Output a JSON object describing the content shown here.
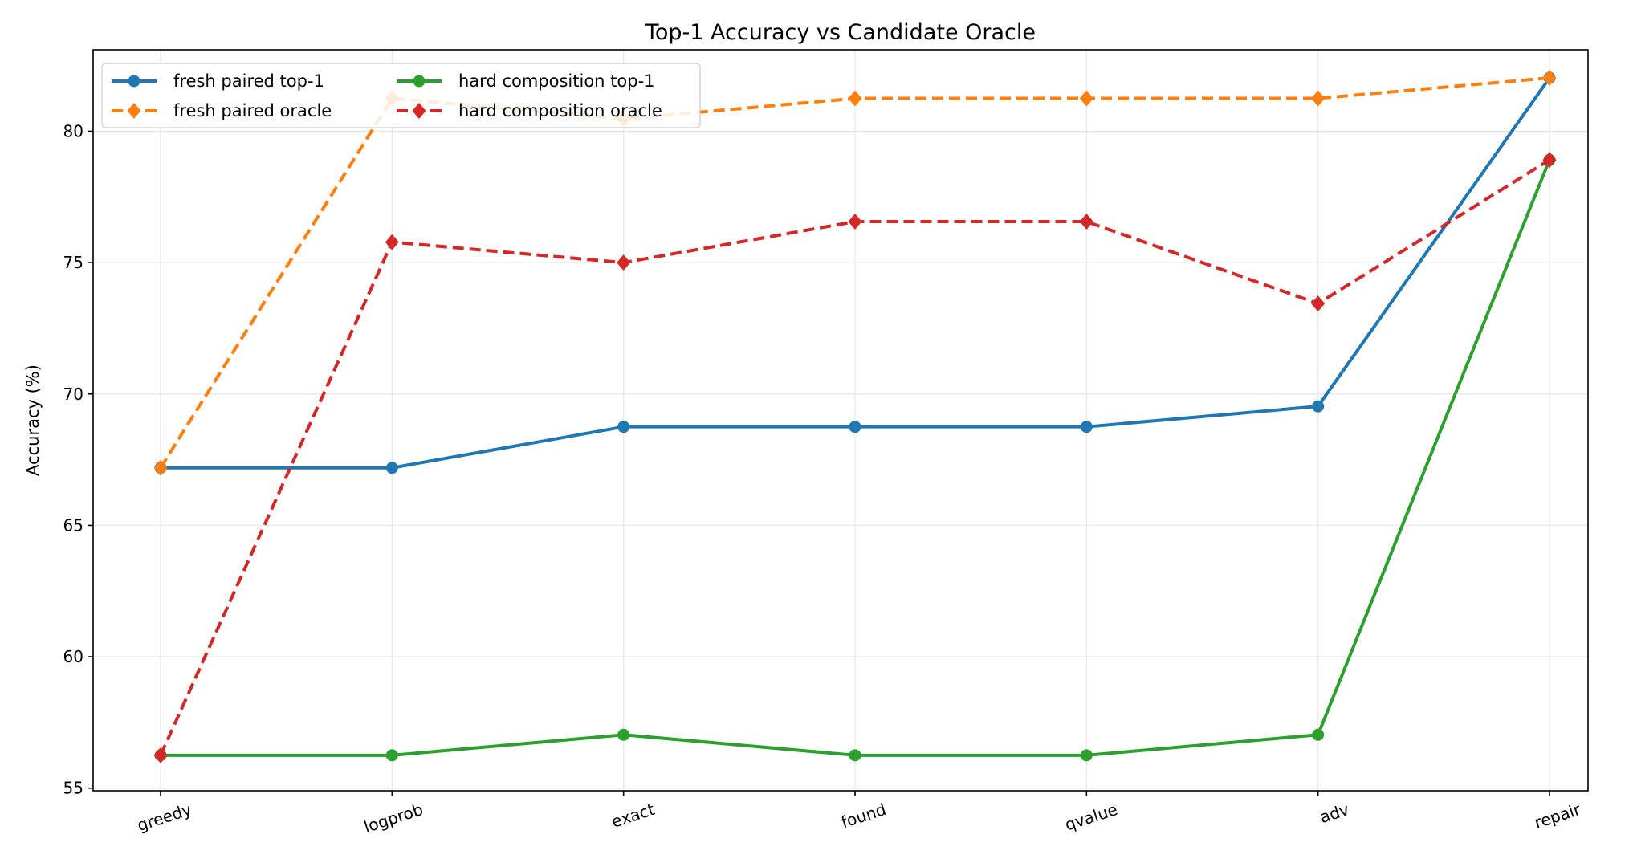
{
  "chart_data": {
    "type": "line",
    "title": "Top-1 Accuracy vs Candidate Oracle",
    "xlabel": "",
    "ylabel": "Accuracy (%)",
    "categories": [
      "greedy",
      "logprob",
      "exact",
      "found",
      "qvalue",
      "adv",
      "repair"
    ],
    "ylim": [
      54.9,
      83.1
    ],
    "yticks": [
      55,
      60,
      65,
      70,
      75,
      80
    ],
    "grid": true,
    "legend_position": "top-left",
    "legend_columns": 2,
    "series": [
      {
        "name": "fresh paired top-1",
        "color": "#1f77b4",
        "linestyle": "solid",
        "marker": "circle",
        "values": [
          67.19,
          67.19,
          68.75,
          68.75,
          68.75,
          69.53,
          82.03
        ]
      },
      {
        "name": "fresh paired oracle",
        "color": "#ff7f0e",
        "linestyle": "dashed",
        "marker": "diamond",
        "values": [
          67.19,
          81.25,
          80.47,
          81.25,
          81.25,
          81.25,
          82.03
        ]
      },
      {
        "name": "hard composition top-1",
        "color": "#2ca02c",
        "linestyle": "solid",
        "marker": "circle",
        "values": [
          56.25,
          56.25,
          57.03,
          56.25,
          56.25,
          57.03,
          78.91
        ]
      },
      {
        "name": "hard composition oracle",
        "color": "#d62728",
        "linestyle": "dashed",
        "marker": "diamond",
        "values": [
          56.25,
          75.78,
          75.0,
          76.56,
          76.56,
          73.44,
          78.91
        ]
      }
    ]
  }
}
